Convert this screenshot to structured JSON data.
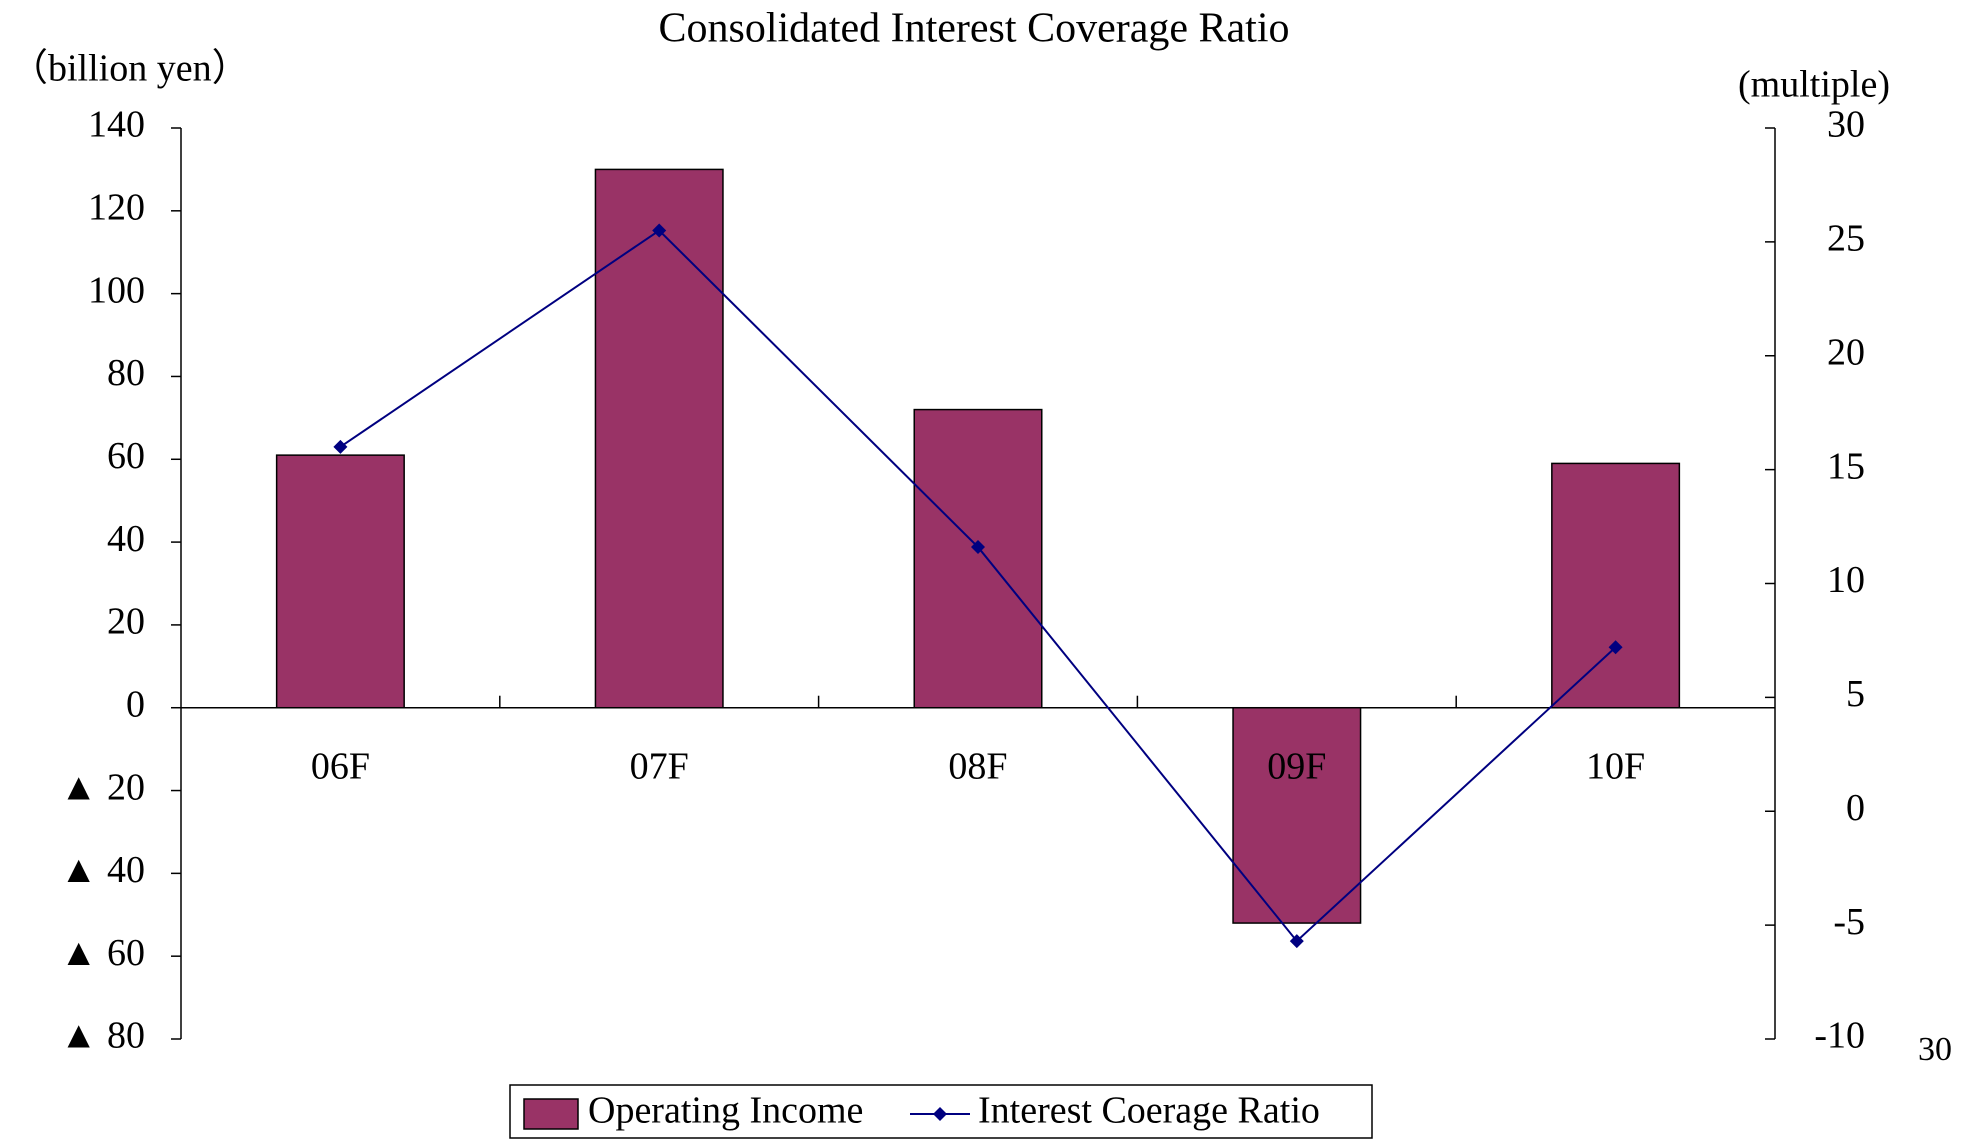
{
  "chart_data": {
    "type": "bar_line",
    "title": "Consolidated Interest Coverage Ratio",
    "y_label": "（billion yen）",
    "y2_label": "(multiple)",
    "categories": [
      "06F",
      "07F",
      "08F",
      "09F",
      "10F"
    ],
    "series": [
      {
        "name": "Operating Income",
        "color": "#993366",
        "type": "bar",
        "values": [
          61,
          130,
          72,
          -52,
          59
        ]
      },
      {
        "name": "Interest Coerage Ratio",
        "color": "#000080",
        "type": "line",
        "axis": "y2",
        "values": [
          16,
          25.5,
          11.6,
          -5.7,
          7.2
        ]
      }
    ],
    "ylim": [
      -80,
      140
    ],
    "yticks": [
      {
        "value": -80,
        "label": "▲ 80"
      },
      {
        "value": -60,
        "label": "▲ 60"
      },
      {
        "value": -40,
        "label": "▲ 40"
      },
      {
        "value": -20,
        "label": "▲ 20"
      },
      0,
      20,
      40,
      60,
      80,
      100,
      120,
      140
    ],
    "y2lim": [
      -10,
      30
    ],
    "y2ticks": [
      -10,
      -5,
      0,
      5,
      10,
      15,
      20,
      25,
      30
    ],
    "legend": "bottom",
    "page_number": "30"
  }
}
